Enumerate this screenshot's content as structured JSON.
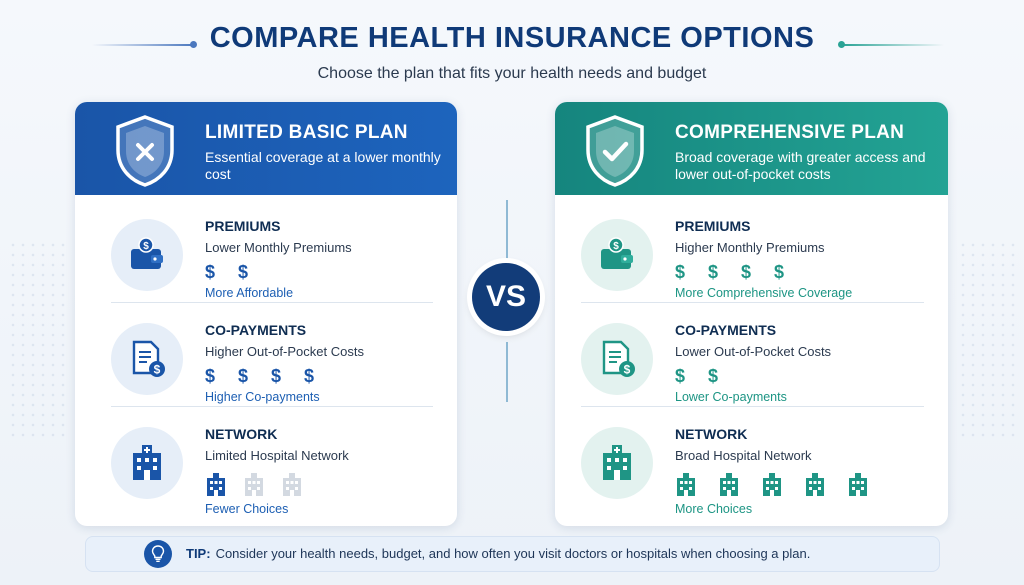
{
  "header": {
    "title": "COMPARE HEALTH INSURANCE OPTIONS",
    "subtitle": "Choose the plan that fits your health needs and budget"
  },
  "plans": [
    {
      "name": "LIMITED BASIC PLAN",
      "description": "Essential coverage at a lower monthly cost",
      "badge_icon": "shield-x-icon",
      "color": "#1a55a8",
      "rows": [
        {
          "title": "PREMIUMS",
          "desc": "Lower Monthly Premiums",
          "marks": "$ $",
          "note": "More Affordable",
          "icon": "wallet-icon"
        },
        {
          "title": "CO-PAYMENTS",
          "desc": "Higher Out-of-Pocket Costs",
          "marks": "$ $ $ $",
          "note": "Higher Co-payments",
          "icon": "document-dollar-icon"
        },
        {
          "title": "NETWORK",
          "desc": "Limited Hospital Network",
          "note": "Fewer Choices",
          "icon": "hospital-icon",
          "network_active": 1,
          "network_total": 3
        }
      ]
    },
    {
      "name": "COMPREHENSIVE PLAN",
      "description": "Broad coverage with greater access and lower out-of-pocket costs",
      "badge_icon": "shield-check-icon",
      "color": "#1f9585",
      "rows": [
        {
          "title": "PREMIUMS",
          "desc": "Higher Monthly Premiums",
          "marks": "$ $ $ $",
          "note": "More Comprehensive Coverage",
          "icon": "wallet-icon"
        },
        {
          "title": "CO-PAYMENTS",
          "desc": "Lower Out-of-Pocket Costs",
          "marks": "$ $",
          "note": "Lower Co-payments",
          "icon": "document-dollar-icon"
        },
        {
          "title": "NETWORK",
          "desc": "Broad Hospital Network",
          "note": "More Choices",
          "icon": "hospital-icon",
          "network_active": 5,
          "network_total": 5
        }
      ]
    }
  ],
  "vs_label": "VS",
  "tip": {
    "label": "TIP:",
    "text": "Consider your health needs, budget, and how often you visit doctors or hospitals when choosing a plan.",
    "icon": "lightbulb-icon"
  }
}
